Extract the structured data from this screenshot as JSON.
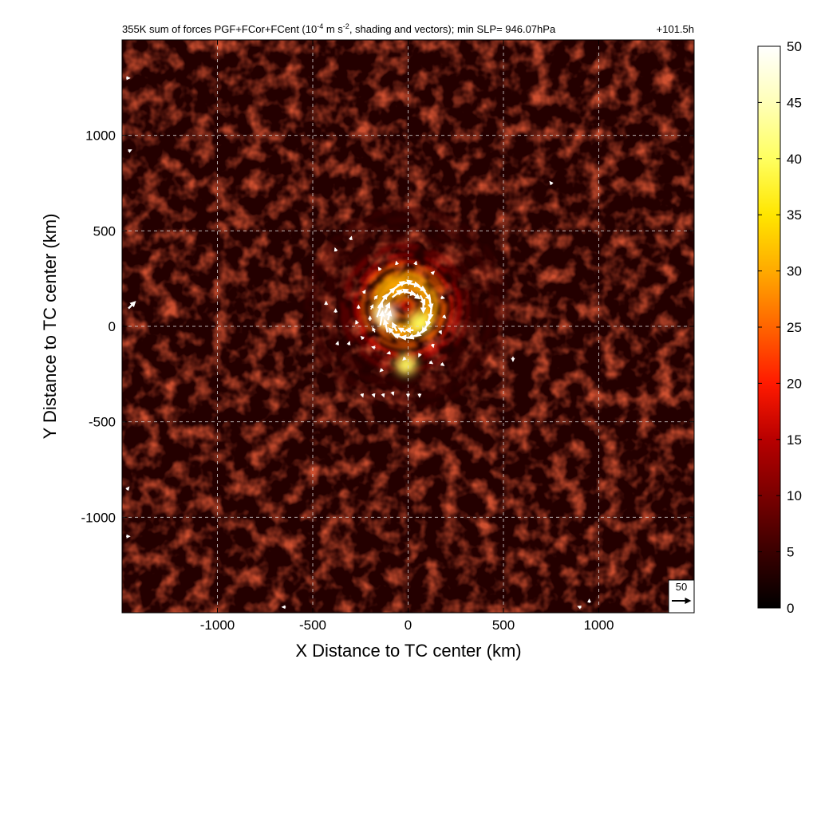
{
  "chart_data": {
    "type": "heatmap",
    "title": "355K sum of forces PGF+FCor+FCent (10",
    "title_sup_1": "-4",
    "title_mid": " m s",
    "title_sup_2": "-2",
    "title_tail": ", shading and vectors); min SLP= 946.07hPa",
    "time_label": "+101.5h",
    "xlabel": "X Distance to TC center (km)",
    "ylabel": "Y Distance to TC center (km)",
    "xlim": [
      -1500,
      1500
    ],
    "ylim": [
      -1500,
      1500
    ],
    "xticks": [
      -1000,
      -500,
      0,
      500,
      1000
    ],
    "yticks": [
      -1000,
      -500,
      0,
      500,
      1000
    ],
    "xtick_labels": [
      "-1000",
      "-500",
      "0",
      "500",
      "1000"
    ],
    "ytick_labels": [
      "-1000",
      "-500",
      "0",
      "500",
      "1000"
    ],
    "grid": true,
    "colorbar": {
      "min": 0,
      "max": 50,
      "ticks": [
        0,
        5,
        10,
        15,
        20,
        25,
        30,
        35,
        40,
        45,
        50
      ],
      "tick_labels": [
        "0",
        "5",
        "10",
        "15",
        "20",
        "25",
        "30",
        "35",
        "40",
        "45",
        "50"
      ],
      "colormap": "hot",
      "colors": [
        "#000000",
        "#3a0000",
        "#7a0000",
        "#b80000",
        "#ff1a00",
        "#ff6400",
        "#ffaa00",
        "#ffe600",
        "#ffff60",
        "#ffffb8",
        "#ffffff"
      ]
    },
    "reference_vector": {
      "label": "50",
      "magnitude": 50
    },
    "field_features": {
      "background_level": 4,
      "eyewall_ring": {
        "center": [
          -20,
          110
        ],
        "radius_km": 130,
        "peak": 45
      },
      "hotspots": [
        {
          "x": -120,
          "y": 60,
          "value": 50
        },
        {
          "x": 60,
          "y": 20,
          "value": 40
        },
        {
          "x": -10,
          "y": -200,
          "value": 38
        },
        {
          "x": -60,
          "y": 200,
          "value": 28
        }
      ],
      "spiral_bands_max_radius_km": 550
    },
    "vectors": [
      {
        "x": -55,
        "y": 210,
        "u": 35,
        "v": 25
      },
      {
        "x": -20,
        "y": 225,
        "u": 40,
        "v": 12
      },
      {
        "x": 20,
        "y": 222,
        "u": 38,
        "v": -8
      },
      {
        "x": 60,
        "y": 205,
        "u": 30,
        "v": -18
      },
      {
        "x": 95,
        "y": 170,
        "u": 22,
        "v": -30
      },
      {
        "x": 115,
        "y": 130,
        "u": 8,
        "v": -38
      },
      {
        "x": 120,
        "y": 80,
        "u": -5,
        "v": -42
      },
      {
        "x": 110,
        "y": 40,
        "u": -12,
        "v": -40
      },
      {
        "x": 95,
        "y": 0,
        "u": -20,
        "v": -32
      },
      {
        "x": 70,
        "y": -30,
        "u": -28,
        "v": -22
      },
      {
        "x": 35,
        "y": -50,
        "u": -32,
        "v": -10
      },
      {
        "x": 0,
        "y": -60,
        "u": -35,
        "v": 4
      },
      {
        "x": -40,
        "y": -55,
        "u": -30,
        "v": 14
      },
      {
        "x": -80,
        "y": -35,
        "u": -22,
        "v": 26
      },
      {
        "x": -115,
        "y": 0,
        "u": -8,
        "v": 34
      },
      {
        "x": -140,
        "y": 40,
        "u": 6,
        "v": 38
      },
      {
        "x": -150,
        "y": 85,
        "u": 14,
        "v": 40
      },
      {
        "x": -135,
        "y": 130,
        "u": 24,
        "v": 38
      },
      {
        "x": -100,
        "y": 170,
        "u": 30,
        "v": 30
      },
      {
        "x": -60,
        "y": 170,
        "u": 25,
        "v": 20
      },
      {
        "x": -30,
        "y": 180,
        "u": 28,
        "v": 12
      },
      {
        "x": 10,
        "y": 175,
        "u": 26,
        "v": -6
      },
      {
        "x": 40,
        "y": 160,
        "u": 20,
        "v": -14
      },
      {
        "x": 75,
        "y": 140,
        "u": 12,
        "v": -24
      },
      {
        "x": 80,
        "y": 100,
        "u": 0,
        "v": -26
      },
      {
        "x": -110,
        "y": 95,
        "u": 12,
        "v": 26
      },
      {
        "x": -100,
        "y": 55,
        "u": 6,
        "v": 24
      },
      {
        "x": -70,
        "y": -5,
        "u": -12,
        "v": 22
      },
      {
        "x": -30,
        "y": -20,
        "u": -18,
        "v": 10
      },
      {
        "x": 10,
        "y": -20,
        "u": -20,
        "v": 0
      },
      {
        "x": -180,
        "y": -20,
        "u": -6,
        "v": 12
      },
      {
        "x": -200,
        "y": 40,
        "u": 0,
        "v": 12
      },
      {
        "x": -190,
        "y": 100,
        "u": 6,
        "v": 12
      },
      {
        "x": -170,
        "y": 150,
        "u": 8,
        "v": 10
      },
      {
        "x": -230,
        "y": 180,
        "u": 5,
        "v": 8
      },
      {
        "x": -260,
        "y": 100,
        "u": 0,
        "v": 8
      },
      {
        "x": -270,
        "y": 20,
        "u": -3,
        "v": 8
      },
      {
        "x": -240,
        "y": -60,
        "u": -6,
        "v": 6
      },
      {
        "x": -180,
        "y": -110,
        "u": -8,
        "v": 2
      },
      {
        "x": -100,
        "y": -140,
        "u": -8,
        "v": -2
      },
      {
        "x": -20,
        "y": -170,
        "u": -6,
        "v": -6
      },
      {
        "x": 60,
        "y": -150,
        "u": -4,
        "v": -8
      },
      {
        "x": 130,
        "y": -100,
        "u": 2,
        "v": -8
      },
      {
        "x": 170,
        "y": -30,
        "u": 4,
        "v": -8
      },
      {
        "x": 190,
        "y": 50,
        "u": 6,
        "v": -6
      },
      {
        "x": 180,
        "y": 150,
        "u": 8,
        "v": -2
      },
      {
        "x": 130,
        "y": 280,
        "u": 6,
        "v": 6
      },
      {
        "x": 40,
        "y": 330,
        "u": 2,
        "v": 8
      },
      {
        "x": -60,
        "y": 330,
        "u": -2,
        "v": 8
      },
      {
        "x": -150,
        "y": 300,
        "u": -4,
        "v": 6
      },
      {
        "x": -380,
        "y": 400,
        "u": -2,
        "v": 6
      },
      {
        "x": -300,
        "y": 460,
        "u": 2,
        "v": 6
      },
      {
        "x": -430,
        "y": 120,
        "u": 0,
        "v": 8
      },
      {
        "x": -380,
        "y": 80,
        "u": 0,
        "v": 6
      },
      {
        "x": -370,
        "y": -90,
        "u": 2,
        "v": 6
      },
      {
        "x": -310,
        "y": -90,
        "u": 2,
        "v": 6
      },
      {
        "x": -240,
        "y": -360,
        "u": 2,
        "v": -6
      },
      {
        "x": -180,
        "y": -360,
        "u": 2,
        "v": -6
      },
      {
        "x": -130,
        "y": -360,
        "u": 2,
        "v": -6
      },
      {
        "x": -80,
        "y": -350,
        "u": 2,
        "v": -6
      },
      {
        "x": 0,
        "y": -360,
        "u": 0,
        "v": -6
      },
      {
        "x": 60,
        "y": -360,
        "u": 0,
        "v": -6
      },
      {
        "x": -140,
        "y": -230,
        "u": -4,
        "v": -4
      },
      {
        "x": 120,
        "y": -190,
        "u": 6,
        "v": -4
      },
      {
        "x": 180,
        "y": -200,
        "u": 6,
        "v": -4
      },
      {
        "x": 550,
        "y": -170,
        "u": 0,
        "v": -12
      },
      {
        "x": 750,
        "y": 750,
        "u": -5,
        "v": 6
      },
      {
        "x": -1450,
        "y": 110,
        "u": 18,
        "v": 18
      },
      {
        "x": -1470,
        "y": 1300,
        "u": 5,
        "v": 0
      },
      {
        "x": -1460,
        "y": 920,
        "u": 6,
        "v": 3
      },
      {
        "x": -1470,
        "y": -1100,
        "u": 8,
        "v": 0
      },
      {
        "x": -1470,
        "y": -850,
        "u": 4,
        "v": 5
      },
      {
        "x": 950,
        "y": -1440,
        "u": 0,
        "v": 8
      },
      {
        "x": 900,
        "y": -1470,
        "u": -8,
        "v": 3
      },
      {
        "x": -650,
        "y": -1470,
        "u": -8,
        "v": 0
      }
    ]
  }
}
